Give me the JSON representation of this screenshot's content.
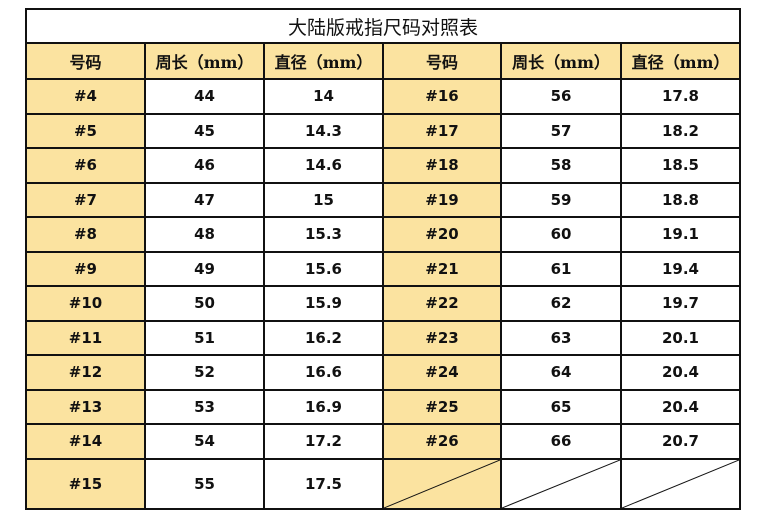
{
  "title": "大陆版戒指尺码对照表",
  "headers": [
    "号码",
    "周长（mm）",
    "直径（mm）",
    "号码",
    "周长（mm）",
    "直径（mm）"
  ],
  "colors": {
    "header_fill": "#fbe3a0",
    "size_column_fill": "#fbe3a0",
    "border": "#111111"
  },
  "rows": [
    {
      "left": [
        "#4",
        "44",
        "14"
      ],
      "right": [
        "#16",
        "56",
        "17.8"
      ]
    },
    {
      "left": [
        "#5",
        "45",
        "14.3"
      ],
      "right": [
        "#17",
        "57",
        "18.2"
      ]
    },
    {
      "left": [
        "#6",
        "46",
        "14.6"
      ],
      "right": [
        "#18",
        "58",
        "18.5"
      ]
    },
    {
      "left": [
        "#7",
        "47",
        "15"
      ],
      "right": [
        "#19",
        "59",
        "18.8"
      ]
    },
    {
      "left": [
        "#8",
        "48",
        "15.3"
      ],
      "right": [
        "#20",
        "60",
        "19.1"
      ]
    },
    {
      "left": [
        "#9",
        "49",
        "15.6"
      ],
      "right": [
        "#21",
        "61",
        "19.4"
      ]
    },
    {
      "left": [
        "#10",
        "50",
        "15.9"
      ],
      "right": [
        "#22",
        "62",
        "19.7"
      ]
    },
    {
      "left": [
        "#11",
        "51",
        "16.2"
      ],
      "right": [
        "#23",
        "63",
        "20.1"
      ]
    },
    {
      "left": [
        "#12",
        "52",
        "16.6"
      ],
      "right": [
        "#24",
        "64",
        "20.4"
      ]
    },
    {
      "left": [
        "#13",
        "53",
        "16.9"
      ],
      "right": [
        "#25",
        "65",
        "20.4"
      ]
    },
    {
      "left": [
        "#14",
        "54",
        "17.2"
      ],
      "right": [
        "#26",
        "66",
        "20.7"
      ]
    },
    {
      "left": [
        "#15",
        "55",
        "17.5"
      ],
      "right": []
    }
  ]
}
